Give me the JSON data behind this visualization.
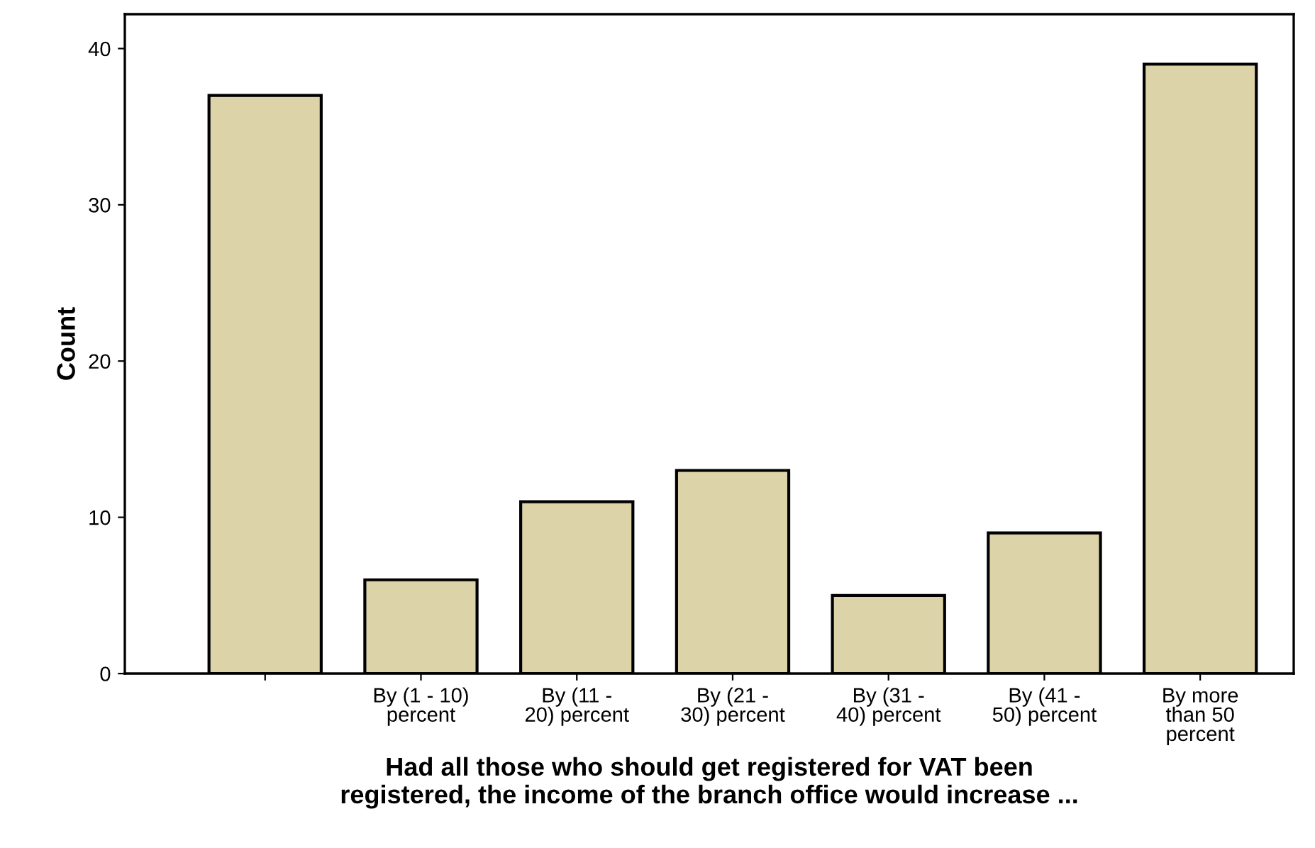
{
  "chart_data": {
    "type": "bar",
    "categories": [
      null,
      "By (1 - 10)\npercent",
      "By (11 -\n20) percent",
      "By (21 -\n30) percent",
      "By (31 -\n40) percent",
      "By (41 -\n50) percent",
      "By more\nthan 50\npercent"
    ],
    "values": [
      37,
      6,
      11,
      13,
      5,
      9,
      39
    ],
    "color": "#ddd3a9",
    "ylim": [
      0,
      42.2
    ],
    "yticks": [
      0,
      10,
      20,
      30,
      40
    ],
    "xlabel": "Had all those who should get registered for VAT been\nregistered, the income of the branch office would increase ...",
    "ylabel": "Count",
    "grid": false,
    "legend": false
  }
}
